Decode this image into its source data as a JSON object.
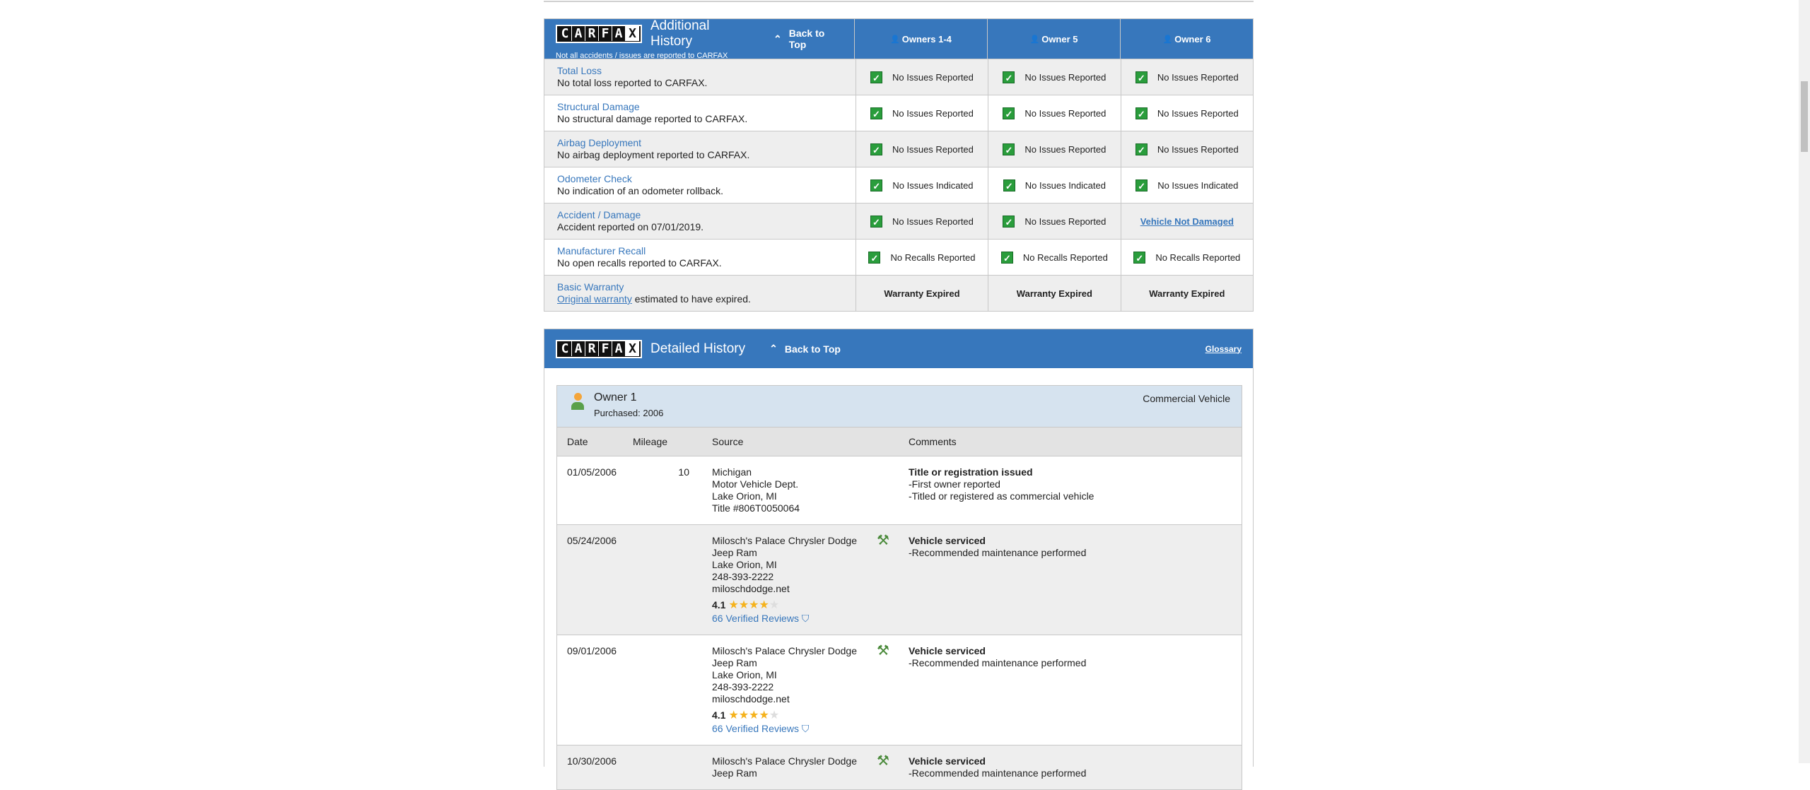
{
  "additional": {
    "title": "Additional History",
    "subtitle": "Not all accidents / issues are reported to CARFAX",
    "back": "Back to Top",
    "owners": [
      "Owners 1-4",
      "Owner 5",
      "Owner 6"
    ],
    "rows": [
      {
        "label": "Total Loss",
        "desc": "No total loss reported to CARFAX.",
        "vals": [
          "No Issues Reported",
          "No Issues Reported",
          "No Issues Reported"
        ]
      },
      {
        "label": "Structural Damage",
        "desc": "No structural damage reported to CARFAX.",
        "vals": [
          "No Issues Reported",
          "No Issues Reported",
          "No Issues Reported"
        ]
      },
      {
        "label": "Airbag Deployment",
        "desc": "No airbag deployment reported to CARFAX.",
        "vals": [
          "No Issues Reported",
          "No Issues Reported",
          "No Issues Reported"
        ]
      },
      {
        "label": "Odometer Check",
        "desc": "No indication of an odometer rollback.",
        "vals": [
          "No Issues Indicated",
          "No Issues Indicated",
          "No Issues Indicated"
        ]
      },
      {
        "label": "Accident / Damage",
        "desc": "Accident reported on 07/01/2019.",
        "vals": [
          "No Issues Reported",
          "No Issues Reported",
          "Vehicle Not Damaged"
        ]
      },
      {
        "label": "Manufacturer Recall",
        "desc": "No open recalls reported to CARFAX.",
        "vals": [
          "No Recalls Reported",
          "No Recalls Reported",
          "No Recalls Reported"
        ]
      },
      {
        "label": "Basic Warranty",
        "desc_link": "Original warranty",
        "desc": "estimated to have expired.",
        "vals": [
          "Warranty Expired",
          "Warranty Expired",
          "Warranty Expired"
        ]
      }
    ]
  },
  "logo": "CARFAX",
  "detailed": {
    "title": "Detailed History",
    "back": "Back to Top",
    "glossary": "Glossary",
    "owner": {
      "name": "Owner 1",
      "purchased": "Purchased: 2006",
      "type": "Commercial Vehicle"
    },
    "columns": [
      "Date",
      "Mileage",
      "Source",
      "Comments"
    ],
    "entries": [
      {
        "date": "01/05/2006",
        "mileage": "10",
        "source": [
          "Michigan",
          "Motor Vehicle Dept.",
          "Lake Orion, MI",
          "Title #806T0050064"
        ],
        "title": "Title or registration issued",
        "comments": [
          "-First owner reported",
          "-Titled or registered as commercial vehicle"
        ]
      },
      {
        "date": "05/24/2006",
        "mileage": "",
        "source": [
          "Milosch's Palace Chrysler Dodge",
          "Jeep Ram",
          "Lake Orion, MI",
          "248-393-2222",
          "miloschdodge.net"
        ],
        "rating": "4.1",
        "reviews": "66 Verified Reviews",
        "title": "Vehicle serviced",
        "comments": [
          "-Recommended maintenance performed"
        ]
      },
      {
        "date": "09/01/2006",
        "mileage": "",
        "source": [
          "Milosch's Palace Chrysler Dodge",
          "Jeep Ram",
          "Lake Orion, MI",
          "248-393-2222",
          "miloschdodge.net"
        ],
        "rating": "4.1",
        "reviews": "66 Verified Reviews",
        "title": "Vehicle serviced",
        "comments": [
          "-Recommended maintenance performed"
        ]
      },
      {
        "date": "10/30/2006",
        "mileage": "",
        "source": [
          "Milosch's Palace Chrysler Dodge",
          "Jeep Ram"
        ],
        "title": "Vehicle serviced",
        "comments": [
          "-Recommended maintenance performed"
        ]
      }
    ]
  },
  "colors": {
    "header": "#3777bc",
    "check": "#2a9d3c",
    "owner_bg": "#d6e3ef"
  }
}
